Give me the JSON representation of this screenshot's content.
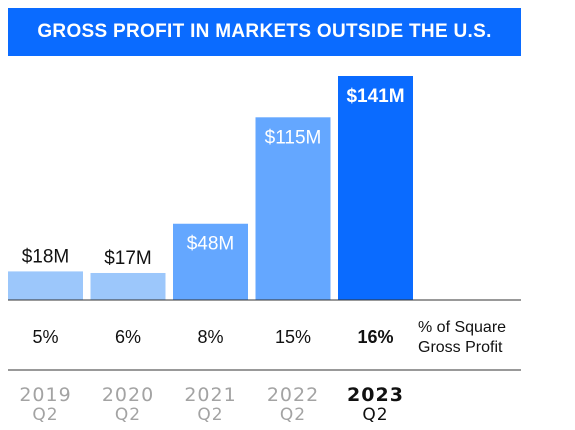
{
  "chart_data": {
    "type": "bar",
    "title": "GROSS PROFIT IN MARKETS OUTSIDE THE U.S.",
    "categories": [
      {
        "year": "2019",
        "quarter": "Q2"
      },
      {
        "year": "2020",
        "quarter": "Q2"
      },
      {
        "year": "2021",
        "quarter": "Q2"
      },
      {
        "year": "2022",
        "quarter": "Q2"
      },
      {
        "year": "2023",
        "quarter": "Q2"
      }
    ],
    "values": [
      18,
      17,
      48,
      115,
      141
    ],
    "value_labels": [
      "$18M",
      "$17M",
      "$48M",
      "$115M",
      "$141M"
    ],
    "share_of_gross_profit": [
      "5%",
      "6%",
      "8%",
      "15%",
      "16%"
    ],
    "share_row_label": [
      "% of Square",
      "Gross Profit"
    ],
    "highlight_index": 4,
    "unit": "$M",
    "ylim": [
      0,
      141
    ],
    "grid": false,
    "legend": "none"
  },
  "colors": {
    "title_bg": "#0a6bff",
    "title_text": "#ffffff",
    "bar_highlight": "#0a6bff",
    "bar_recent": "#64a7ff",
    "bar_early": "#9cc7fb",
    "muted_text": "#a3a3a3",
    "axis_line": "#333333"
  }
}
